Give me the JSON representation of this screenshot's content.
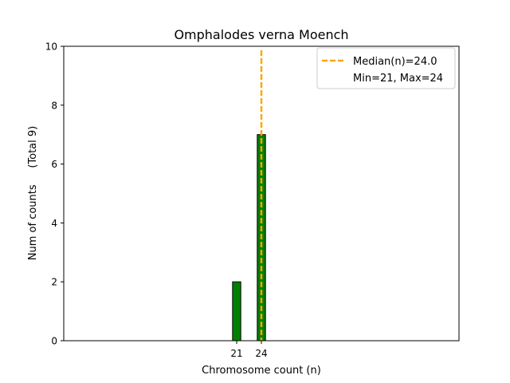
{
  "chart_data": {
    "type": "bar",
    "title": "Omphalodes verna Moench",
    "xlabel": "Chromosome count (n)",
    "ylabel": "Num of counts     (Total 9)",
    "xlim": [
      0,
      48
    ],
    "ylim": [
      0,
      10
    ],
    "yticks": [
      0,
      2,
      4,
      6,
      8,
      10
    ],
    "xticks": [
      21,
      24
    ],
    "bar_width": 1,
    "bar_color": "#008000",
    "bar_edge_color": "#000000",
    "series": [
      {
        "x": [
          21,
          24
        ],
        "values": [
          2,
          7
        ]
      }
    ],
    "median_line": {
      "x": 24.0,
      "color": "#FFA500"
    },
    "legend": {
      "placement": "top-right",
      "entries": [
        "Median(n)=24.0",
        "Min=21, Max=24"
      ]
    }
  }
}
